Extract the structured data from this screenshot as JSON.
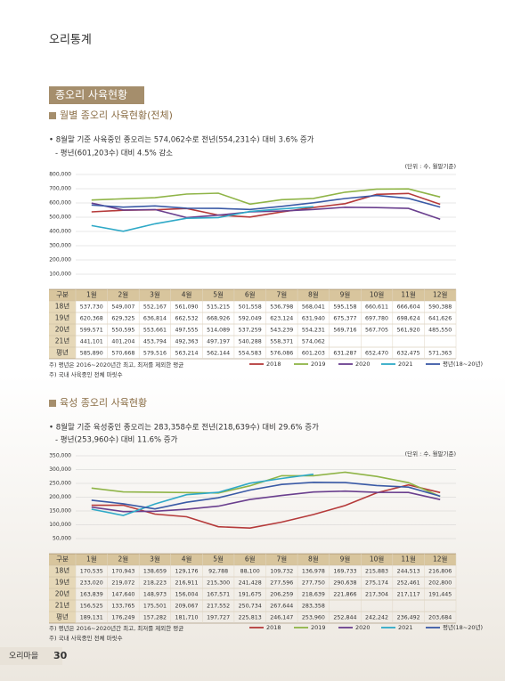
{
  "header": {
    "title": "오리통계"
  },
  "section_title": "종오리 사육현황",
  "sections": [
    {
      "heading": "월별 종오리 사육현황(전체)",
      "bullet": "• 8월말 기준 사육중인 종오리는 574,062수로  전년(554,231수) 대비 3.6% 증가",
      "sub": "- 평년(601,203수) 대비 4.5% 감소",
      "unit": "(단위 : 수, 월말기준)",
      "table": {
        "corner": "구분",
        "row_labels": [
          "18년",
          "19년",
          "20년",
          "21년",
          "평년"
        ]
      },
      "notes": [
        "주) 평년은 2016~2020년간 최고, 최저를 제외한 평균",
        "주) 국내 사육중인 전체 마릿수"
      ]
    },
    {
      "heading": "육성 종오리 사육현황",
      "bullet": "• 8월말 기준 육성중인 종오리는 283,358수로 전년(218,639수) 대비 29.6% 증가",
      "sub": "- 평년(253,960수) 대비 11.6% 증가",
      "unit": "(단위 : 수, 월말기준)",
      "table": {
        "corner": "구분",
        "row_labels": [
          "18년",
          "19년",
          "20년",
          "21년",
          "평년"
        ]
      },
      "notes": [
        "주) 평년은 2016~2020년간 최고, 최저를 제외한 평균",
        "주) 국내 사육중인 전체 마릿수"
      ]
    }
  ],
  "chart_data": [
    {
      "type": "line",
      "grid": true,
      "categories": [
        "1월",
        "2월",
        "3월",
        "4월",
        "5월",
        "6월",
        "7월",
        "8월",
        "9월",
        "10월",
        "11월",
        "12월"
      ],
      "ylim": [
        100000,
        800000
      ],
      "yticks": [
        {
          "value": 100000,
          "label": "100,000"
        },
        {
          "value": 200000,
          "label": "200,000"
        },
        {
          "value": 300000,
          "label": "300,000"
        },
        {
          "value": 400000,
          "label": "400,000"
        },
        {
          "value": 500000,
          "label": "500,000"
        },
        {
          "value": 600000,
          "label": "600,000"
        },
        {
          "value": 700000,
          "label": "700,000"
        },
        {
          "value": 800000,
          "label": "800,000"
        }
      ],
      "series": [
        {
          "name": "2018",
          "color": "#b53a3a",
          "values": [
            537730,
            549007,
            552167,
            561090,
            515215,
            501558,
            536798,
            568041,
            595158,
            660611,
            666604,
            590388
          ],
          "value_labels": [
            "537,730",
            "549,007",
            "552,167",
            "561,090",
            "515,215",
            "501,558",
            "536,798",
            "568,041",
            "595,158",
            "660,611",
            "666,604",
            "590,388"
          ]
        },
        {
          "name": "2019",
          "color": "#8fb447",
          "values": [
            620368,
            629325,
            636814,
            662532,
            668926,
            592049,
            623124,
            631940,
            675377,
            697780,
            698624,
            641626
          ],
          "value_labels": [
            "620,368",
            "629,325",
            "636,814",
            "662,532",
            "668,926",
            "592,049",
            "623,124",
            "631,940",
            "675,377",
            "697,780",
            "698,624",
            "641,626"
          ]
        },
        {
          "name": "2020",
          "color": "#6a3f8e",
          "values": [
            599571,
            550595,
            553661,
            497555,
            514089,
            537259,
            543239,
            554231,
            569716,
            567705,
            561920,
            485550
          ],
          "value_labels": [
            "599,571",
            "550,595",
            "553,661",
            "497,555",
            "514,089",
            "537,259",
            "543,239",
            "554,231",
            "569,716",
            "567,705",
            "561,920",
            "485,550"
          ]
        },
        {
          "name": "2021",
          "color": "#2fa9c7",
          "values": [
            441101,
            401204,
            453794,
            492363,
            497197,
            540288,
            558371,
            574062,
            null,
            null,
            null,
            null
          ],
          "value_labels": [
            "441,101",
            "401,204",
            "453,794",
            "492,363",
            "497,197",
            "540,288",
            "558,371",
            "574,062",
            null,
            null,
            null,
            null
          ]
        },
        {
          "name": "평년(18~20년)",
          "color": "#3a5aa6",
          "values": [
            585890,
            570668,
            579516,
            563214,
            562144,
            554583,
            576086,
            601203,
            631287,
            652470,
            632475,
            571363
          ],
          "value_labels": [
            "585,890",
            "570,668",
            "579,516",
            "563,214",
            "562,144",
            "554,583",
            "576,086",
            "601,203",
            "631,287",
            "652,470",
            "632,475",
            "571,363"
          ]
        }
      ]
    },
    {
      "type": "line",
      "grid": true,
      "categories": [
        "1월",
        "2월",
        "3월",
        "4월",
        "5월",
        "6월",
        "7월",
        "8월",
        "9월",
        "10월",
        "11월",
        "12월"
      ],
      "ylim": [
        50000,
        350000
      ],
      "yticks": [
        {
          "value": 50000,
          "label": "50,000"
        },
        {
          "value": 100000,
          "label": "100,000"
        },
        {
          "value": 150000,
          "label": "150,000"
        },
        {
          "value": 200000,
          "label": "200,000"
        },
        {
          "value": 250000,
          "label": "250,000"
        },
        {
          "value": 300000,
          "label": "300,000"
        },
        {
          "value": 350000,
          "label": "350,000"
        }
      ],
      "series": [
        {
          "name": "2018",
          "color": "#b53a3a",
          "values": [
            170535,
            170943,
            138659,
            129176,
            92788,
            88100,
            109732,
            136978,
            169733,
            215883,
            244513,
            216806
          ],
          "value_labels": [
            "170,535",
            "170,943",
            "138,659",
            "129,176",
            "92,788",
            "88,100",
            "109,732",
            "136,978",
            "169,733",
            "215,883",
            "244,513",
            "216,806"
          ]
        },
        {
          "name": "2019",
          "color": "#8fb447",
          "values": [
            233020,
            219072,
            218223,
            216911,
            215300,
            241428,
            277596,
            277750,
            290638,
            275174,
            252461,
            202800
          ],
          "value_labels": [
            "233,020",
            "219,072",
            "218,223",
            "216,911",
            "215,300",
            "241,428",
            "277,596",
            "277,750",
            "290,638",
            "275,174",
            "252,461",
            "202,800"
          ]
        },
        {
          "name": "2020",
          "color": "#6a3f8e",
          "values": [
            163839,
            147640,
            148973,
            156004,
            167571,
            191675,
            206259,
            218639,
            221866,
            217304,
            217117,
            191445
          ],
          "value_labels": [
            "163,839",
            "147,640",
            "148,973",
            "156,004",
            "167,571",
            "191,675",
            "206,259",
            "218,639",
            "221,866",
            "217,304",
            "217,117",
            "191,445"
          ]
        },
        {
          "name": "2021",
          "color": "#2fa9c7",
          "values": [
            156525,
            133765,
            175501,
            209067,
            217552,
            250734,
            267644,
            283358,
            null,
            null,
            null,
            null
          ],
          "value_labels": [
            "156,525",
            "133,765",
            "175,501",
            "209,067",
            "217,552",
            "250,734",
            "267,644",
            "283,358",
            null,
            null,
            null,
            null
          ]
        },
        {
          "name": "평년(18~20년)",
          "color": "#3a5aa6",
          "values": [
            189131,
            176249,
            157282,
            181710,
            197727,
            225813,
            246147,
            253960,
            252844,
            242242,
            236492,
            203684
          ],
          "value_labels": [
            "189,131",
            "176,249",
            "157,282",
            "181,710",
            "197,727",
            "225,813",
            "246,147",
            "253,960",
            "252,844",
            "242,242",
            "236,492",
            "203,684"
          ]
        }
      ]
    }
  ],
  "footer": {
    "label": "오리마을",
    "page": "30"
  }
}
